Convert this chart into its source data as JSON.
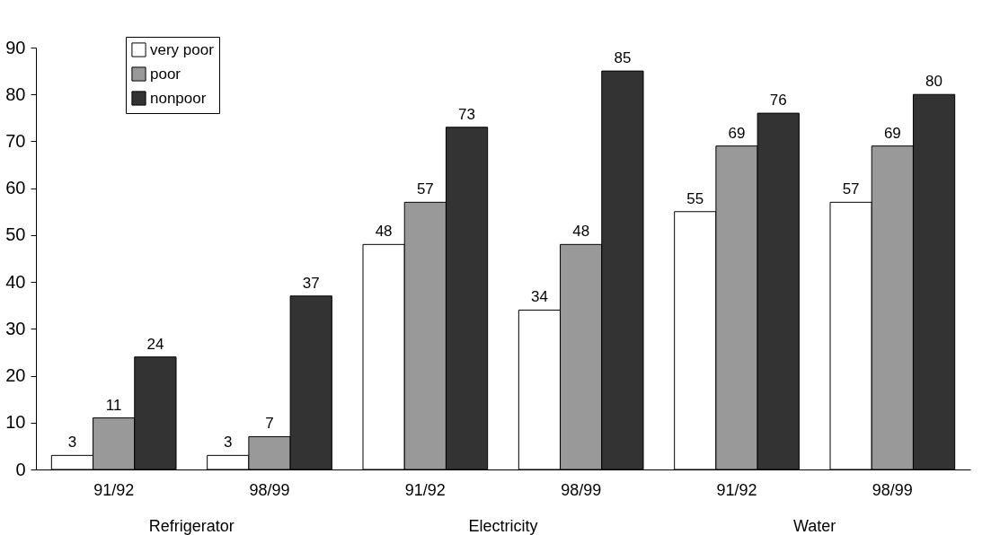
{
  "chart_data": {
    "type": "bar",
    "categories": [
      "91/92",
      "98/99",
      "91/92",
      "98/99",
      "91/92",
      "98/99"
    ],
    "series": [
      {
        "name": "very poor",
        "color": "#ffffff",
        "values": [
          3,
          3,
          48,
          34,
          55,
          57
        ]
      },
      {
        "name": "poor",
        "color": "#999999",
        "values": [
          11,
          7,
          57,
          48,
          69,
          69
        ]
      },
      {
        "name": "nonpoor",
        "color": "#333333",
        "values": [
          24,
          37,
          73,
          85,
          76,
          80
        ]
      }
    ],
    "annotations": [
      "Refrigerator",
      "Electricity",
      "Water"
    ],
    "ylim": [
      0,
      90
    ],
    "yticks": [
      0,
      10,
      20,
      30,
      40,
      50,
      60,
      70,
      80,
      90
    ],
    "data_labels": true,
    "legend": "top left",
    "grid": false
  }
}
